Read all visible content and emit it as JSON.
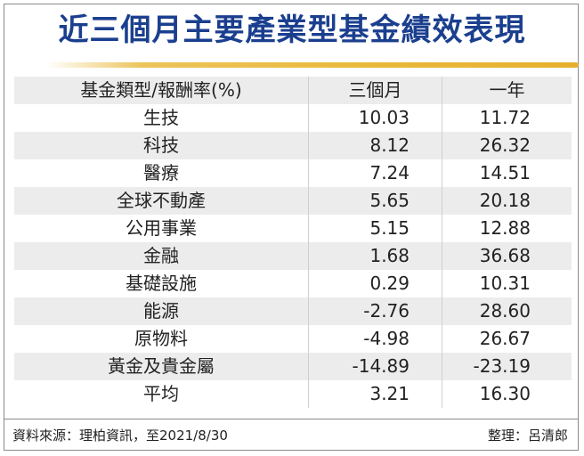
{
  "title": "近三個月主要產業型基金績效表現",
  "table": {
    "headers": [
      "基金類型/報酬率(%)",
      "三個月",
      "一年"
    ],
    "rows": [
      {
        "type": "生技",
        "three_month": "10.03",
        "one_year": "11.72"
      },
      {
        "type": "科技",
        "three_month": "8.12",
        "one_year": "26.32"
      },
      {
        "type": "醫療",
        "three_month": "7.24",
        "one_year": "14.51"
      },
      {
        "type": "全球不動產",
        "three_month": "5.65",
        "one_year": "20.18"
      },
      {
        "type": "公用事業",
        "three_month": "5.15",
        "one_year": "12.88"
      },
      {
        "type": "金融",
        "three_month": "1.68",
        "one_year": "36.68"
      },
      {
        "type": "基礎設施",
        "three_month": "0.29",
        "one_year": "10.31"
      },
      {
        "type": "能源",
        "three_month": "-2.76",
        "one_year": "28.60"
      },
      {
        "type": "原物料",
        "three_month": "-4.98",
        "one_year": "26.67"
      },
      {
        "type": "黃金及貴金屬",
        "three_month": "-14.89",
        "one_year": "-23.19"
      },
      {
        "type": "平均",
        "three_month": "3.21",
        "one_year": "16.30"
      }
    ]
  },
  "footer": {
    "source": "資料來源：理柏資訊，至2021/8/30",
    "editor": "整理：呂清郎"
  },
  "colors": {
    "title": "#1b3f8f",
    "accent_rule": "#e9b93a",
    "row_shade": "#ececec"
  }
}
